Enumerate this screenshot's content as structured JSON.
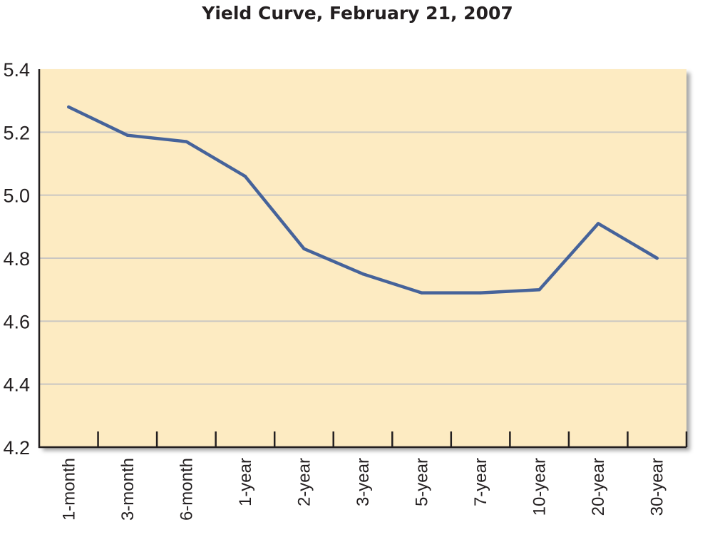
{
  "chart_data": {
    "type": "line",
    "title": "Yield Curve, February 21, 2007",
    "xlabel": "",
    "ylabel": "",
    "categories": [
      "1-month",
      "3-month",
      "6-month",
      "1-year",
      "2-year",
      "3-year",
      "5-year",
      "7-year",
      "10-year",
      "20-year",
      "30-year"
    ],
    "series": [
      {
        "values": [
          5.28,
          5.19,
          5.17,
          5.06,
          4.83,
          4.75,
          4.69,
          4.69,
          4.7,
          4.91,
          4.8
        ]
      }
    ],
    "ylim": [
      4.2,
      5.4
    ],
    "yticks": [
      "4.2",
      "4.4",
      "4.6",
      "4.8",
      "5.0",
      "5.2",
      "5.4"
    ],
    "grid": true,
    "colors": {
      "line": "#46639a",
      "plot_background": "#fdebc2",
      "gridline": "#c9c6c2",
      "axis": "#231f20"
    }
  }
}
